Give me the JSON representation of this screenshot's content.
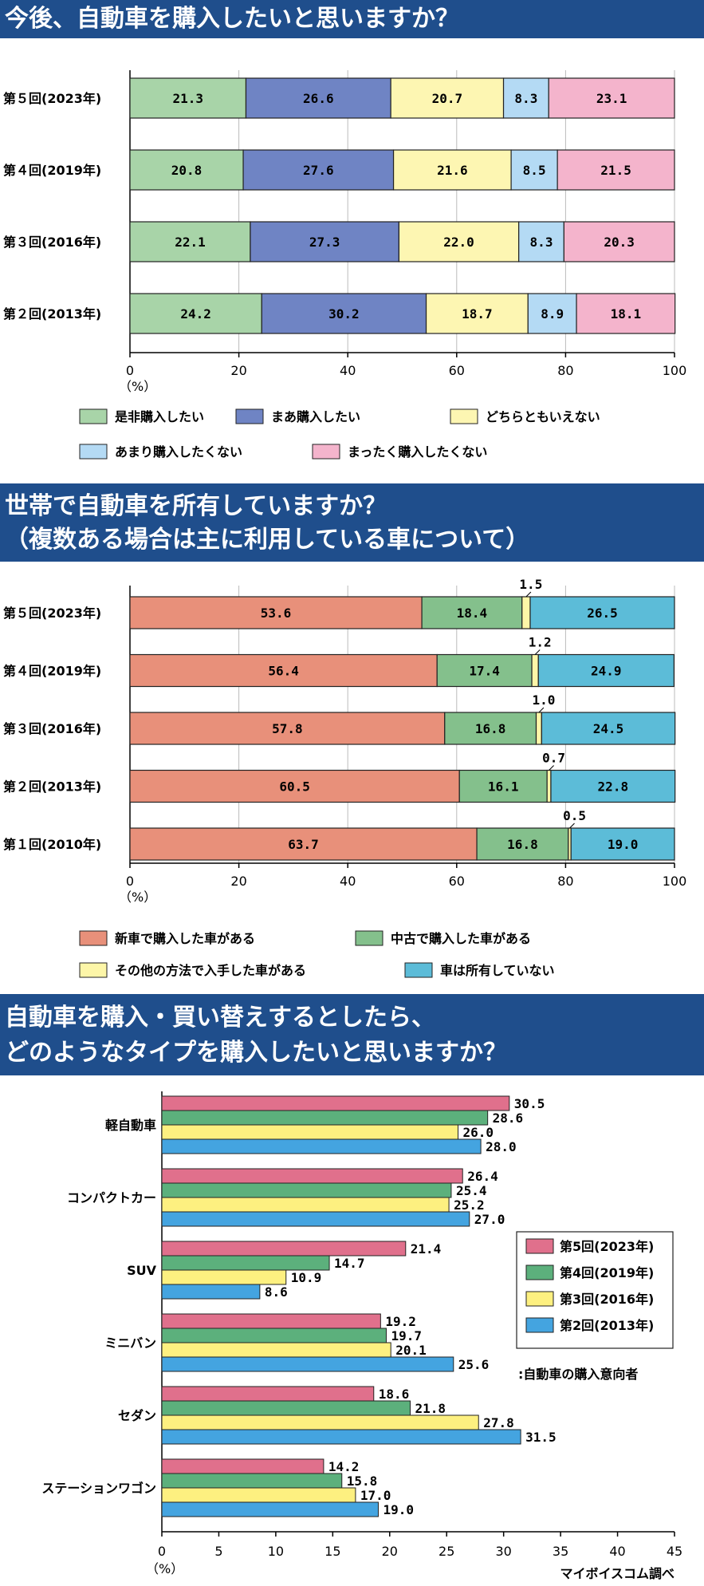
{
  "chart_data": [
    {
      "type": "bar",
      "stacked": true,
      "orientation": "horizontal",
      "title": "今後、自動車を購入したいと思いますか？",
      "categories": [
        "第５回(2023年)",
        "第４回(2019年)",
        "第３回(2016年)",
        "第２回(2013年)"
      ],
      "series": [
        {
          "name": "是非購入したい",
          "values": [
            21.3,
            20.8,
            22.1,
            24.2
          ],
          "color": "#a8d4a8"
        },
        {
          "name": "まあ購入したい",
          "values": [
            26.6,
            27.6,
            27.3,
            30.2
          ],
          "color": "#6f84c4"
        },
        {
          "name": "どちらともいえない",
          "values": [
            20.7,
            21.6,
            22.0,
            18.7
          ],
          "color": "#fdf6b2"
        },
        {
          "name": "あまり購入したくない",
          "values": [
            8.3,
            8.5,
            8.3,
            8.9
          ],
          "color": "#b4daf4"
        },
        {
          "name": "まったく購入したくない",
          "values": [
            23.1,
            21.5,
            20.3,
            18.1
          ],
          "color": "#f4b4cc"
        }
      ],
      "xlim": [
        0,
        100
      ],
      "xticks": [
        0,
        20,
        40,
        60,
        80,
        100
      ],
      "unit_label": "（%）"
    },
    {
      "type": "bar",
      "stacked": true,
      "orientation": "horizontal",
      "title_lines": [
        "世帯で自動車を所有していますか？",
        "（複数ある場合は主に利用している車について）"
      ],
      "categories": [
        "第５回(2023年)",
        "第４回(2019年)",
        "第３回(2016年)",
        "第２回(2013年)",
        "第１回(2010年)"
      ],
      "series": [
        {
          "name": "新車で購入した車がある",
          "values": [
            53.6,
            56.4,
            57.8,
            60.5,
            63.7
          ],
          "color": "#e8907a"
        },
        {
          "name": "中古で購入した車がある",
          "values": [
            18.4,
            17.4,
            16.8,
            16.1,
            16.8
          ],
          "color": "#84c08c"
        },
        {
          "name": "その他の方法で入手した車がある",
          "values": [
            1.5,
            1.2,
            1.0,
            0.7,
            0.5
          ],
          "color": "#fdf6a8"
        },
        {
          "name": "車は所有していない",
          "values": [
            26.5,
            24.9,
            24.5,
            22.8,
            19.0
          ],
          "color": "#5cbcd8"
        }
      ],
      "xlim": [
        0,
        100
      ],
      "xticks": [
        0,
        20,
        40,
        60,
        80,
        100
      ],
      "unit_label": "（%）"
    },
    {
      "type": "bar",
      "stacked": false,
      "orientation": "horizontal",
      "title_lines": [
        "自動車を購入・買い替えするとしたら、",
        "どのようなタイプを購入したいと思いますか？"
      ],
      "categories": [
        "軽自動車",
        "コンパクトカー",
        "SUV",
        "ミニバン",
        "セダン",
        "ステーションワゴン"
      ],
      "series": [
        {
          "name": "第5回(2023年)",
          "values": [
            30.5,
            26.4,
            21.4,
            19.2,
            18.6,
            14.2
          ],
          "color": "#e0708c"
        },
        {
          "name": "第4回(2019年)",
          "values": [
            28.6,
            25.4,
            14.7,
            19.7,
            21.8,
            15.8
          ],
          "color": "#5cb07c"
        },
        {
          "name": "第3回(2016年)",
          "values": [
            26.0,
            25.2,
            10.9,
            20.1,
            27.8,
            17.0
          ],
          "color": "#fdf080"
        },
        {
          "name": "第2回(2013年)",
          "values": [
            28.0,
            27.0,
            8.6,
            25.6,
            31.5,
            19.0
          ],
          "color": "#44a4e0"
        }
      ],
      "xlim": [
        0,
        45
      ],
      "xticks": [
        0,
        5,
        10,
        15,
        20,
        25,
        30,
        35,
        40,
        45
      ],
      "unit_label": "（%）",
      "note": ":自動車の購入意向者",
      "source": "マイボイスコム調べ"
    }
  ]
}
